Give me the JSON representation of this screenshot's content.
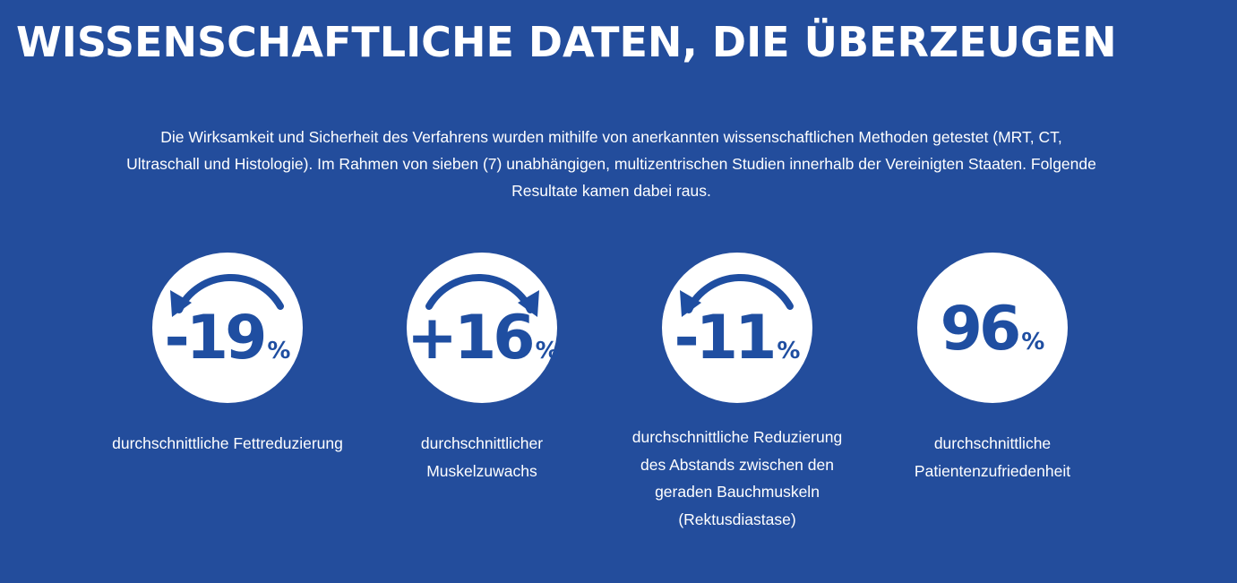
{
  "header": {
    "title": "WISSENSCHAFTLICHE DATEN, DIE ÜBERZEUGEN"
  },
  "intro": {
    "text": "Die Wirksamkeit und Sicherheit des Verfahrens wurden mithilfe von anerkannten wissenschaftlichen Methoden getestet (MRT, CT, Ultraschall und Histologie). Im Rahmen von sieben (7) unabhängigen, multizentrischen Studien innerhalb der Vereinigten Staaten. Folgende Resultate kamen dabei raus."
  },
  "colors": {
    "background": "#234d9c",
    "circle": "#ffffff",
    "accent": "#1f4ea1",
    "text": "#ffffff"
  },
  "stats": [
    {
      "value": "-19",
      "unit": "%",
      "caption": "durchschnittliche Fettreduzierung",
      "icon": "arrow-counterclockwise-icon"
    },
    {
      "value": "+16",
      "unit": "%",
      "caption": "durchschnittlicher Muskelzuwachs",
      "icon": "arrow-clockwise-icon"
    },
    {
      "value": "-11",
      "unit": "%",
      "caption": "durchschnittliche Reduzierung des Abstands zwischen den geraden Bauchmuskeln (Rektusdiastase)",
      "icon": "arrow-counterclockwise-icon"
    },
    {
      "value": "96",
      "unit": "%",
      "caption": "durchschnittliche Patientenzufriedenheit",
      "icon": ""
    }
  ]
}
